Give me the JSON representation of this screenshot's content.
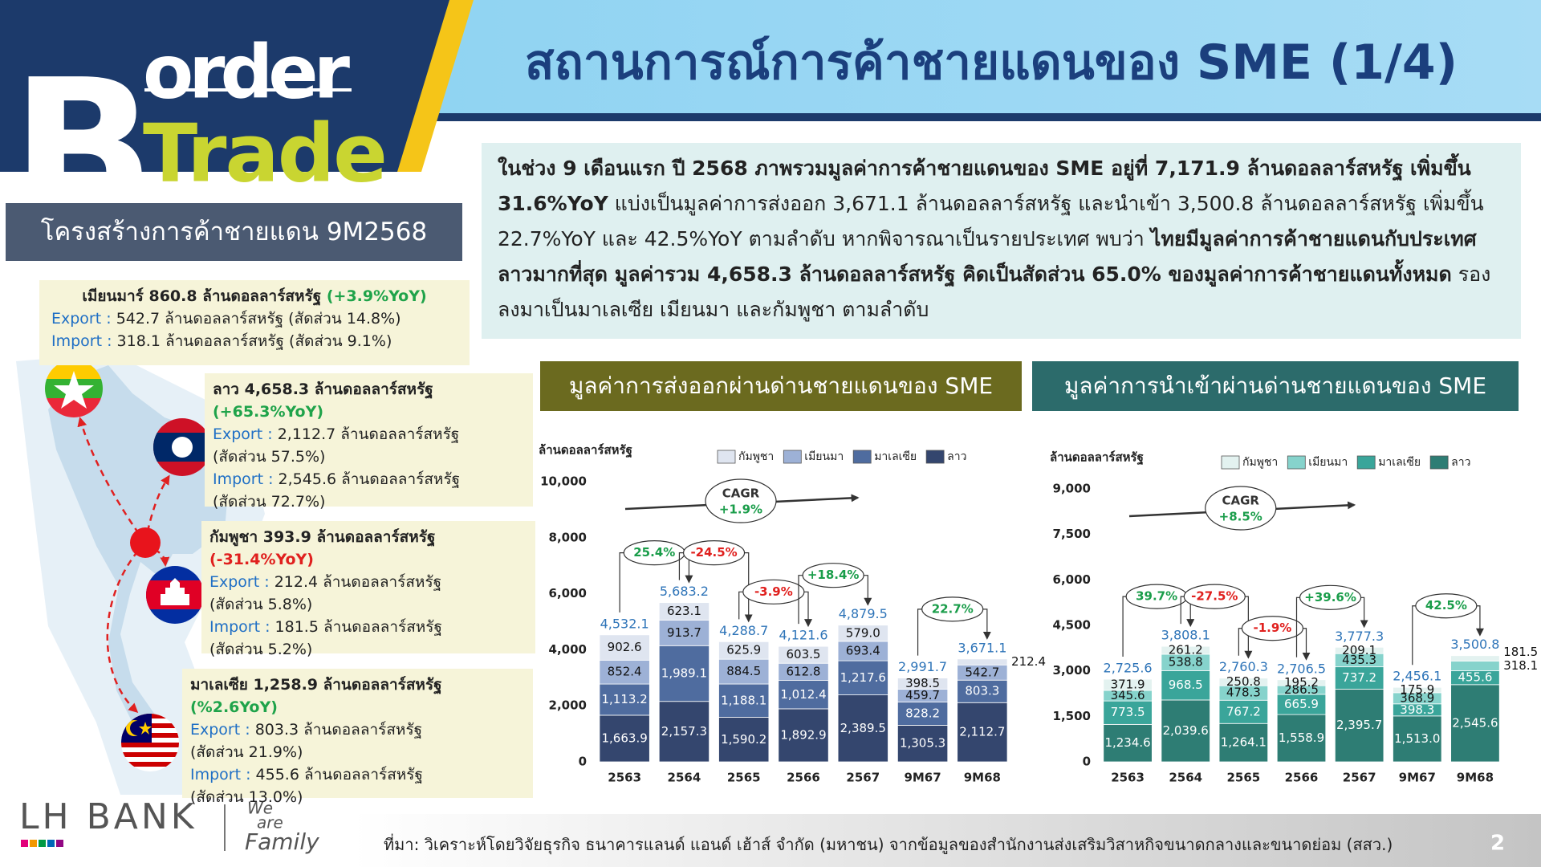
{
  "logo": {
    "letter": "B",
    "line1": "order",
    "line2": "Trade"
  },
  "header": {
    "title": "สถานการณ์การค้าชายแดนของ SME (1/4)"
  },
  "section_title": "โครงสร้างการค้าชายแดน 9M2568",
  "summary": [
    {
      "text": "ในช่วง 9 เดือนแรก ปี 2568 ภาพรวมมูลค่าการค้าชายแดนของ SME อยู่ที่ 7,171.9 ล้านดอลลาร์สหรัฐ เพิ่มขึ้น 31.6%YoY",
      "bold": true
    },
    {
      "text": " แบ่งเป็นมูลค่าการส่งออก 3,671.1 ล้านดอลลาร์สหรัฐ และนำเข้า 3,500.8 ล้านดอลลาร์สหรัฐ เพิ่มขึ้น 22.7%YoY และ 42.5%YoY ตามลำดับ หากพิจารณาเป็นรายประเทศ พบว่า ",
      "bold": false
    },
    {
      "text": "ไทยมีมูลค่าการค้าชายแดนกับประเทศลาวมากที่สุด มูลค่ารวม 4,658.3 ล้านดอลลาร์สหรัฐ คิดเป็นสัดส่วน 65.0% ของมูลค่าการค้าชายแดนทั้งหมด",
      "bold": true
    },
    {
      "text": " รองลงมาเป็นมาเลเซีย เมียนมา และกัมพูชา ตามลำดับ",
      "bold": false
    }
  ],
  "countries": [
    {
      "title": "เมียนมาร์ 860.8 ล้านดอลลาร์สหรัฐ",
      "change": "(+3.9%YoY)",
      "lines": [
        {
          "label": "Export :",
          "text": "542.7 ล้านดอลลาร์สหรัฐ (สัดส่วน 14.8%)"
        },
        {
          "label": "Import :",
          "text": "318.1 ล้านดอลลาร์สหรัฐ (สัดส่วน 9.1%)"
        }
      ]
    },
    {
      "title": "ลาว 4,658.3 ล้านดอลลาร์สหรัฐ",
      "change": "(+65.3%YoY)",
      "lines": [
        {
          "label": "Export :",
          "text": "2,112.7 ล้านดอลลาร์สหรัฐ"
        },
        {
          "text": "(สัดส่วน 57.5%)"
        },
        {
          "label": "Import :",
          "text": "2,545.6 ล้านดอลลาร์สหรัฐ"
        },
        {
          "text": "(สัดส่วน 72.7%)"
        }
      ]
    },
    {
      "title": "กัมพูชา 393.9 ล้านดอลลาร์สหรัฐ",
      "change": "(-31.4%YoY)",
      "lines": [
        {
          "label": "Export :",
          "text": "212.4 ล้านดอลลาร์สหรัฐ"
        },
        {
          "text": "(สัดส่วน 5.8%)"
        },
        {
          "label": "Import :",
          "text": "181.5 ล้านดอลลาร์สหรัฐ"
        },
        {
          "text": "(สัดส่วน 5.2%)"
        }
      ]
    },
    {
      "title": "มาเลเซีย 1,258.9 ล้านดอลลาร์สหรัฐ",
      "change": "(%2.6YoY)",
      "lines": [
        {
          "label": "Export :",
          "text": "803.3 ล้านดอลลาร์สหรัฐ"
        },
        {
          "text": "(สัดส่วน 21.9%)"
        },
        {
          "label": "Import :",
          "text": "455.6 ล้านดอลลาร์สหรัฐ"
        },
        {
          "text": "(สัดส่วน 13.0%)"
        }
      ]
    }
  ],
  "chart_data": [
    {
      "type": "bar",
      "stacked": true,
      "title": "มูลค่าการส่งออกผ่านด่านชายแดนของ SME",
      "title_color": "#6b6a1f",
      "y_label": "ล้านดอลลาร์สหรัฐ",
      "categories": [
        "2563",
        "2564",
        "2565",
        "2566",
        "2567",
        "9M67",
        "9M68"
      ],
      "series": [
        {
          "name": "ลาว",
          "color": "#34466e",
          "label_color": "#ffffff",
          "values": [
            1663.9,
            2157.3,
            1590.2,
            1892.9,
            2389.5,
            1305.3,
            2112.7
          ],
          "value_labels": [
            "1,663.9",
            "2,157.3",
            "1,590.2",
            "1,892.9",
            "2,389.5",
            "1,305.3",
            "2,112.7"
          ]
        },
        {
          "name": "มาเลเซีย",
          "color": "#4f6c9f",
          "label_color": "#ffffff",
          "values": [
            1113.2,
            1989.1,
            1188.1,
            1012.4,
            1217.6,
            828.2,
            803.3
          ],
          "value_labels": [
            "1,113.2",
            "1,989.1",
            "1,188.1",
            "1,012.4",
            "1,217.6",
            "828.2",
            "803.3"
          ]
        },
        {
          "name": "เมียนมา",
          "color": "#9db1d6",
          "label_color": "#111111",
          "values": [
            852.4,
            913.7,
            884.5,
            612.8,
            693.4,
            459.7,
            542.7
          ],
          "value_labels": [
            "852.4",
            "913.7",
            "884.5",
            "612.8",
            "693.4",
            "459.7",
            "542.7"
          ]
        },
        {
          "name": "กัมพูชา",
          "color": "#dfe5f0",
          "label_color": "#111111",
          "values": [
            902.6,
            623.1,
            625.9,
            603.5,
            579.0,
            398.5,
            212.4
          ],
          "value_labels": [
            "902.6",
            "623.1",
            "625.9",
            "603.5",
            "579.0",
            "398.5",
            "212.4"
          ]
        }
      ],
      "totals": [
        4532.1,
        5683.2,
        4288.7,
        4121.6,
        4879.5,
        2991.7,
        3671.1
      ],
      "total_labels": [
        "4,532.1",
        "5,683.2",
        "4,288.7",
        "4,121.6",
        "4,879.5",
        "2,991.7",
        "3,671.1"
      ],
      "growth": [
        null,
        "25.4%",
        "-24.5%",
        "-3.9%",
        "+18.4%",
        null,
        "22.7%"
      ],
      "cagr_label": "CAGR",
      "cagr": "+1.9%",
      "ylim": [
        0,
        10000
      ],
      "yticks": [
        0,
        {
          "value": 2000,
          "label": "2,000"
        },
        {
          "value": 4000,
          "label": "4,000"
        },
        {
          "value": 6000,
          "label": "6,000"
        },
        {
          "value": 8000,
          "label": "8,000"
        },
        {
          "value": 10000,
          "label": "10,000"
        }
      ]
    },
    {
      "type": "bar",
      "stacked": true,
      "title": "มูลค่าการนำเข้าผ่านด่านชายแดนของ SME",
      "title_color": "#2c6b6b",
      "y_label": "ล้านดอลลาร์สหรัฐ",
      "categories": [
        "2563",
        "2564",
        "2565",
        "2566",
        "2567",
        "9M67",
        "9M68"
      ],
      "series": [
        {
          "name": "ลาว",
          "color": "#2e7d74",
          "label_color": "#ffffff",
          "values": [
            1234.6,
            2039.6,
            1264.1,
            1558.9,
            2395.7,
            1513.0,
            2545.6
          ],
          "value_labels": [
            "1,234.6",
            "2,039.6",
            "1,264.1",
            "1,558.9",
            "2,395.7",
            "1,513.0",
            "2,545.6"
          ]
        },
        {
          "name": "มาเลเซีย",
          "color": "#3aa59a",
          "label_color": "#ffffff",
          "values": [
            773.5,
            968.5,
            767.2,
            665.9,
            737.2,
            398.3,
            455.6
          ],
          "value_labels": [
            "773.5",
            "968.5",
            "767.2",
            "665.9",
            "737.2",
            "398.3",
            "455.6"
          ]
        },
        {
          "name": "เมียนมา",
          "color": "#86d3cc",
          "label_color": "#111111",
          "values": [
            345.6,
            538.8,
            478.3,
            286.5,
            435.3,
            368.9,
            318.1
          ],
          "value_labels": [
            "345.6",
            "538.8",
            "478.3",
            "286.5",
            "435.3",
            "368.9",
            "318.1"
          ]
        },
        {
          "name": "กัมพูชา",
          "color": "#e3f2f0",
          "label_color": "#111111",
          "values": [
            371.9,
            261.2,
            250.8,
            195.2,
            209.1,
            175.9,
            181.5
          ],
          "value_labels": [
            "371.9",
            "261.2",
            "250.8",
            "195.2",
            "209.1",
            "175.9",
            "181.5"
          ]
        }
      ],
      "totals": [
        2725.6,
        3808.1,
        2760.3,
        2706.5,
        3777.3,
        2456.1,
        3500.8
      ],
      "total_labels": [
        "2,725.6",
        "3,808.1",
        "2,760.3",
        "2,706.5",
        "3,777.3",
        "2,456.1",
        "3,500.8"
      ],
      "growth": [
        null,
        "39.7%",
        "-27.5%",
        "-1.9%",
        "+39.6%",
        null,
        "42.5%"
      ],
      "cagr_label": "CAGR",
      "cagr": "+8.5%",
      "ylim": [
        0,
        9000
      ],
      "yticks": [
        0,
        {
          "value": 1500,
          "label": "1,500"
        },
        {
          "value": 3000,
          "label": "3,000"
        },
        {
          "value": 4500,
          "label": "4,500"
        },
        {
          "value": 6000,
          "label": "6,000"
        },
        {
          "value": 7500,
          "label": "7,500"
        },
        {
          "value": 9000,
          "label": "9,000"
        }
      ]
    }
  ],
  "footer": {
    "bank": "LH BANK",
    "tagline": [
      "We",
      "are",
      "Family"
    ],
    "source": "ที่มา: วิเคราะห์โดยวิจัยธุรกิจ ธนาคารแลนด์ แอนด์ เฮ้าส์ จำกัด (มหาชน) จากข้อมูลของสำนักงานส่งเสริมวิสาหกิจขนาดกลางและขนาดย่อม (สสว.)",
    "page": "2"
  }
}
